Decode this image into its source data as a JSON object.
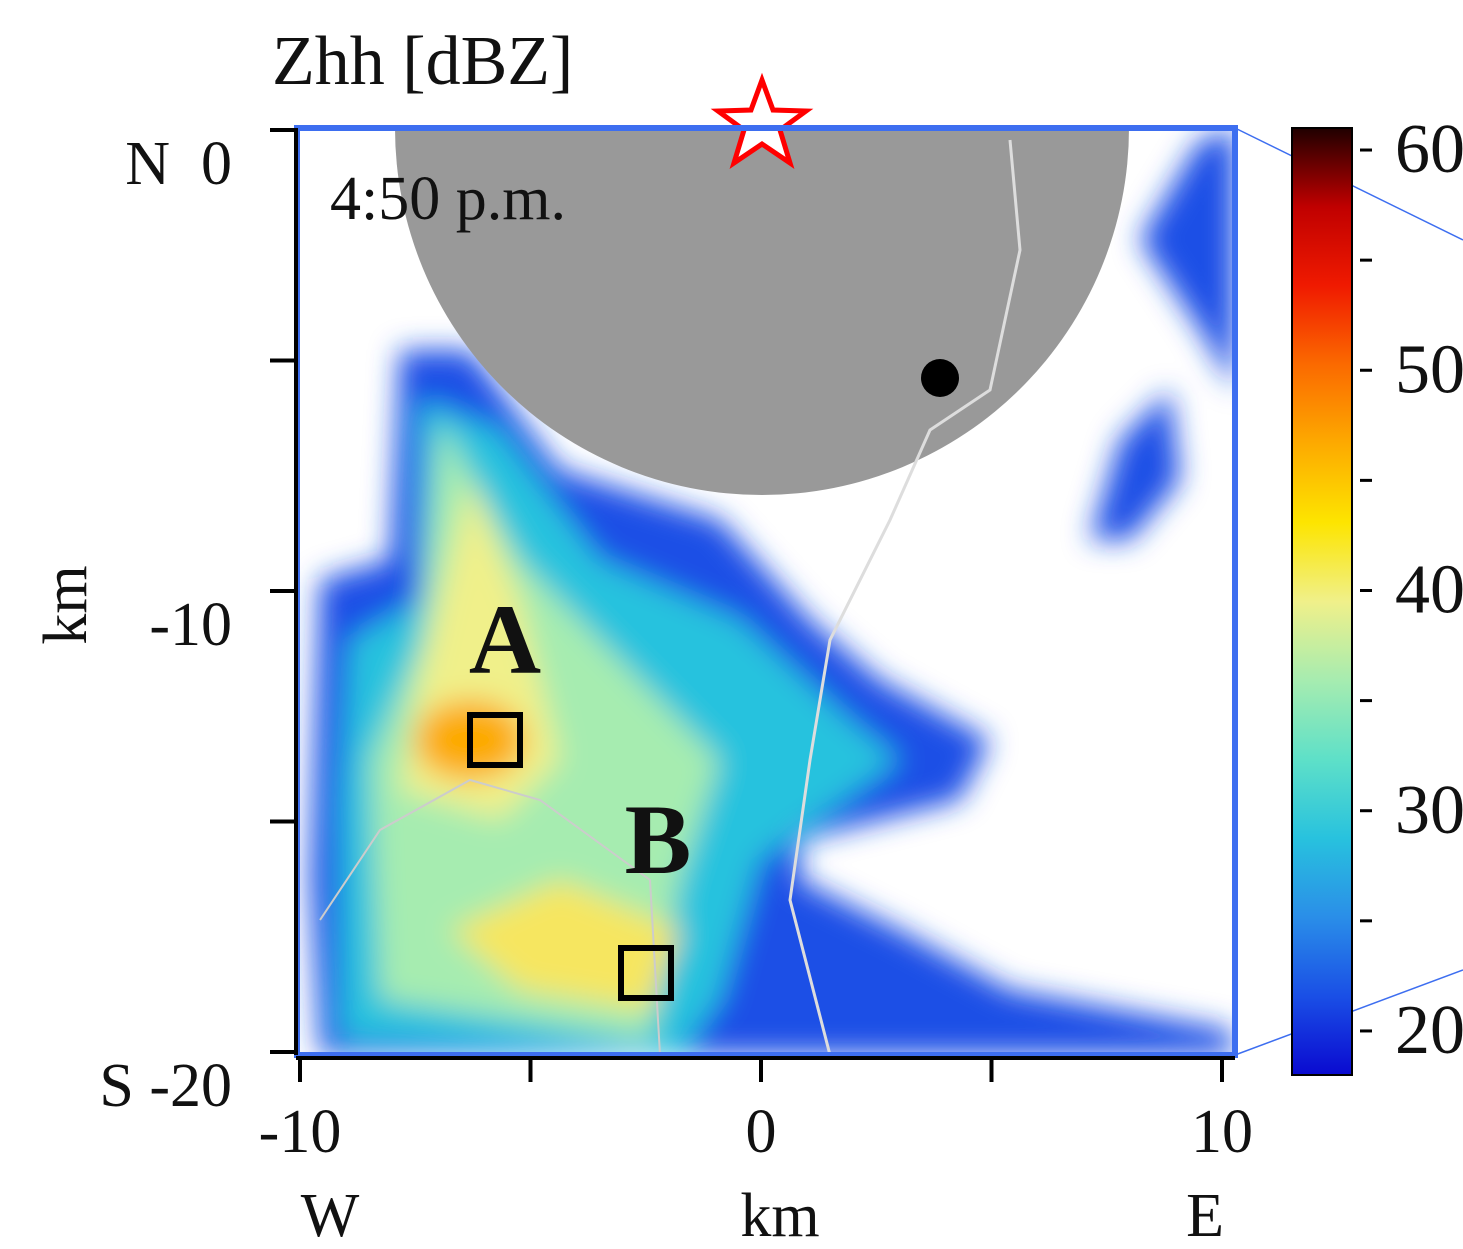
{
  "chart_data": {
    "type": "radar-map",
    "title": "Zhh [dBZ]",
    "time": "4:50 p.m.",
    "annotations": [
      "A",
      "B"
    ],
    "x_label": "km",
    "y_label": "km",
    "x_west": "W",
    "x_east": "E",
    "xlim": [
      -10,
      10
    ],
    "xticks": [
      -10,
      {
        "value": -5,
        "label": null
      },
      0,
      {
        "value": 5,
        "label": null
      },
      10
    ],
    "ylim": [
      -20,
      0
    ],
    "yticks": [
      {
        "value": 0,
        "label": "N  0"
      },
      {
        "value": -5,
        "label": null
      },
      -10,
      {
        "value": -15,
        "label": null
      },
      {
        "value": -20,
        "label": "S -20"
      }
    ],
    "clim": [
      18,
      61
    ],
    "cticks": [
      20,
      {
        "value": 25,
        "label": null
      },
      30,
      {
        "value": 35,
        "label": null
      },
      40,
      {
        "value": 45,
        "label": null
      },
      50,
      {
        "value": 55,
        "label": null
      },
      60
    ],
    "colormap": [
      "#0a0ad0",
      "#1a4fe6",
      "#2a8ee8",
      "#28c2de",
      "#5ee0c8",
      "#a6ecb0",
      "#f0f08a",
      "#fde500",
      "#fdaa00",
      "#fb6a00",
      "#f01a00",
      "#c00000",
      "#200000"
    ],
    "frame_color": "#3d6ef0"
  }
}
